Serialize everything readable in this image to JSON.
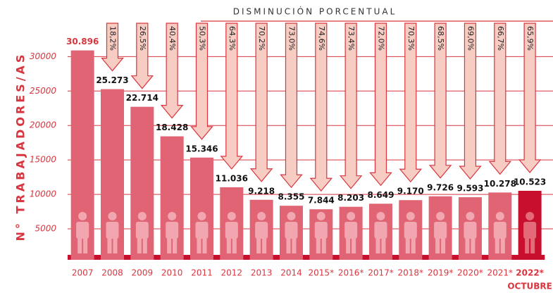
{
  "chart_data": {
    "type": "bar",
    "ylabel": "N° TRABAJADORES/AS",
    "categories": [
      "2007",
      "2008",
      "2009",
      "2010",
      "2011",
      "2012",
      "2013",
      "2014",
      "2015*",
      "2016*",
      "2017*",
      "2018*",
      "2019*",
      "2020*",
      "2021*",
      "2022*"
    ],
    "values": [
      30896,
      25273,
      22714,
      18428,
      15346,
      11036,
      9218,
      8355,
      7844,
      8203,
      8649,
      9170,
      9726,
      9593,
      10278,
      10523
    ],
    "value_labels": [
      "30.896",
      "25.273",
      "22.714",
      "18.428",
      "15.346",
      "11.036",
      "9.218",
      "8.355",
      "7.844",
      "8.203",
      "8.649",
      "9.170",
      "9.726",
      "9.593",
      "10.278",
      "10.523"
    ],
    "color": "#e06474",
    "highlight_color": "#c8102e",
    "annotation": "OCTUBRE",
    "ylim": [
      0,
      33000
    ],
    "yticks": [
      5000,
      10000,
      15000,
      20000,
      25000,
      30000
    ],
    "grid": true,
    "percent_decrease": {
      "title": "DISMINUCIÓN PORCENTUAL",
      "color": "#f7cdc3",
      "values": [
        null,
        18.2,
        26.5,
        40.4,
        50.3,
        64.3,
        70.2,
        73.0,
        74.6,
        73.4,
        72.0,
        70.3,
        68.5,
        69.0,
        66.7,
        65.9
      ],
      "value_labels": [
        null,
        "18,2%",
        "26,5%",
        "40,4%",
        "50,3%",
        "64,3%",
        "70,2%",
        "73,0%",
        "74,6%",
        "73,4%",
        "72,0%",
        "70,3%",
        "68,5%",
        "69,0%",
        "66,7%",
        "65,9%"
      ]
    }
  }
}
